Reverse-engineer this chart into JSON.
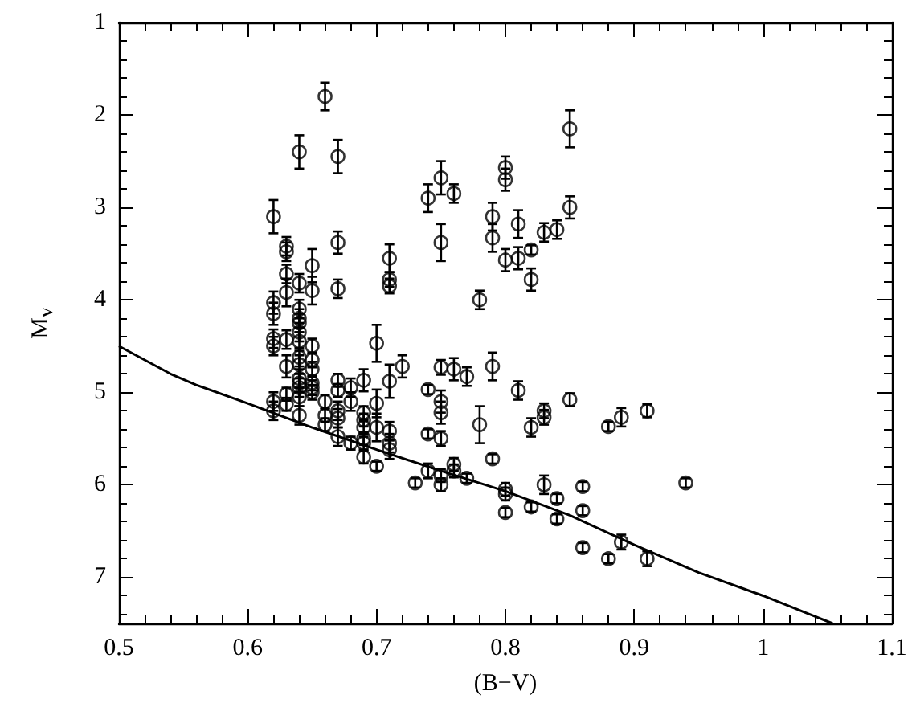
{
  "chart_data": {
    "type": "scatter",
    "xlabel": "(B−V)",
    "ylabel": "M$_{V}$",
    "xlim": [
      0.5,
      1.1
    ],
    "xticks": [
      0.5,
      0.6,
      0.7,
      0.8,
      0.9,
      {
        "value": 1,
        "label": "1"
      },
      1.1
    ],
    "ylim": [
      7.5,
      1
    ],
    "yticks": [
      1,
      2,
      3,
      4,
      5,
      6,
      7
    ],
    "grid": false,
    "series": [
      {
        "color": "#000000",
        "marker": "circle",
        "x": [
          0.66,
          0.64,
          0.67,
          0.85,
          0.75,
          0.8,
          0.8,
          0.74,
          0.76,
          0.62,
          0.85,
          0.75,
          0.79,
          0.79,
          0.81,
          0.83,
          0.84,
          0.67,
          0.63,
          0.63,
          0.71,
          0.8,
          0.81,
          0.82,
          0.63,
          0.64,
          0.65,
          0.65,
          0.63,
          0.67,
          0.71,
          0.71,
          0.82,
          0.78,
          0.62,
          0.62,
          0.64,
          0.64,
          0.64,
          0.64,
          0.62,
          0.62,
          0.63,
          0.64,
          0.64,
          0.64,
          0.64,
          0.64,
          0.64,
          0.64,
          0.65,
          0.65,
          0.65,
          0.65,
          0.65,
          0.65,
          0.63,
          0.7,
          0.72,
          0.75,
          0.76,
          0.77,
          0.79,
          0.67,
          0.67,
          0.68,
          0.69,
          0.71,
          0.74,
          0.81,
          0.85,
          0.62,
          0.62,
          0.63,
          0.63,
          0.64,
          0.66,
          0.66,
          0.66,
          0.67,
          0.67,
          0.67,
          0.68,
          0.68,
          0.69,
          0.69,
          0.69,
          0.69,
          0.69,
          0.69,
          0.7,
          0.7,
          0.7,
          0.71,
          0.71,
          0.71,
          0.74,
          0.75,
          0.75,
          0.75,
          0.78,
          0.82,
          0.83,
          0.83,
          0.88,
          0.89,
          0.91,
          0.79,
          0.73,
          0.74,
          0.75,
          0.75,
          0.76,
          0.76,
          0.77,
          0.8,
          0.8,
          0.8,
          0.82,
          0.83,
          0.84,
          0.84,
          0.86,
          0.86,
          0.86,
          0.88,
          0.89,
          0.91,
          0.94
        ],
        "values": [
          1.8,
          2.4,
          2.45,
          2.15,
          2.68,
          2.57,
          2.7,
          2.9,
          2.85,
          3.1,
          3.0,
          3.38,
          3.1,
          3.33,
          3.18,
          3.27,
          3.24,
          3.38,
          3.42,
          3.48,
          3.55,
          3.57,
          3.55,
          3.46,
          3.72,
          3.82,
          3.63,
          3.9,
          3.92,
          3.88,
          3.78,
          3.85,
          3.78,
          4.0,
          4.03,
          4.15,
          4.1,
          4.2,
          4.25,
          4.35,
          4.42,
          4.5,
          4.43,
          4.45,
          4.62,
          4.7,
          4.85,
          4.9,
          4.95,
          5.05,
          4.5,
          4.65,
          4.75,
          4.9,
          4.95,
          5.0,
          4.72,
          4.47,
          4.72,
          4.73,
          4.75,
          4.83,
          4.72,
          4.87,
          4.98,
          4.95,
          4.87,
          4.88,
          4.97,
          4.98,
          5.08,
          5.1,
          5.2,
          5.02,
          5.13,
          5.25,
          5.1,
          5.25,
          5.35,
          5.2,
          5.28,
          5.48,
          5.1,
          5.55,
          5.22,
          5.3,
          5.38,
          5.5,
          5.55,
          5.7,
          5.12,
          5.38,
          5.8,
          5.42,
          5.55,
          5.62,
          5.45,
          5.1,
          5.22,
          5.5,
          5.35,
          5.38,
          5.2,
          5.27,
          5.37,
          5.27,
          5.2,
          5.72,
          5.98,
          5.85,
          5.9,
          6.0,
          5.78,
          5.85,
          5.93,
          6.05,
          6.1,
          6.3,
          6.24,
          6.0,
          6.15,
          6.37,
          6.02,
          6.28,
          6.68,
          6.8,
          6.62,
          6.8,
          5.98
        ],
        "errors": [
          0.15,
          0.18,
          0.18,
          0.2,
          0.18,
          0.12,
          0.12,
          0.15,
          0.1,
          0.18,
          0.12,
          0.2,
          0.15,
          0.15,
          0.15,
          0.1,
          0.1,
          0.12,
          0.1,
          0.1,
          0.15,
          0.12,
          0.12,
          0.05,
          0.1,
          0.1,
          0.18,
          0.15,
          0.15,
          0.1,
          0.08,
          0.08,
          0.12,
          0.1,
          0.12,
          0.12,
          0.1,
          0.1,
          0.1,
          0.1,
          0.1,
          0.1,
          0.1,
          0.1,
          0.1,
          0.1,
          0.1,
          0.1,
          0.1,
          0.1,
          0.08,
          0.08,
          0.08,
          0.08,
          0.08,
          0.08,
          0.12,
          0.2,
          0.12,
          0.08,
          0.12,
          0.1,
          0.15,
          0.07,
          0.07,
          0.1,
          0.12,
          0.18,
          0.05,
          0.1,
          0.07,
          0.1,
          0.1,
          0.07,
          0.07,
          0.1,
          0.07,
          0.07,
          0.07,
          0.1,
          0.1,
          0.1,
          0.1,
          0.07,
          0.07,
          0.07,
          0.07,
          0.07,
          0.07,
          0.07,
          0.15,
          0.15,
          0.05,
          0.1,
          0.1,
          0.1,
          0.05,
          0.12,
          0.12,
          0.08,
          0.2,
          0.1,
          0.08,
          0.08,
          0.05,
          0.1,
          0.07,
          0.05,
          0.05,
          0.08,
          0.07,
          0.07,
          0.07,
          0.07,
          0.05,
          0.07,
          0.07,
          0.05,
          0.05,
          0.1,
          0.05,
          0.05,
          0.05,
          0.05,
          0.05,
          0.05,
          0.08,
          0.08,
          0.05
        ]
      },
      {
        "type": "line",
        "color": "#000000",
        "marker": "none",
        "line_style": "solid",
        "x": [
          0.5,
          0.52,
          0.54,
          0.56,
          0.6,
          0.65,
          0.7,
          0.75,
          0.8,
          0.85,
          0.9,
          0.95,
          1.0,
          1.054
        ],
        "values": [
          4.5,
          4.65,
          4.8,
          4.92,
          5.12,
          5.38,
          5.62,
          5.85,
          6.07,
          6.33,
          6.65,
          6.95,
          7.2,
          7.5
        ]
      }
    ]
  }
}
